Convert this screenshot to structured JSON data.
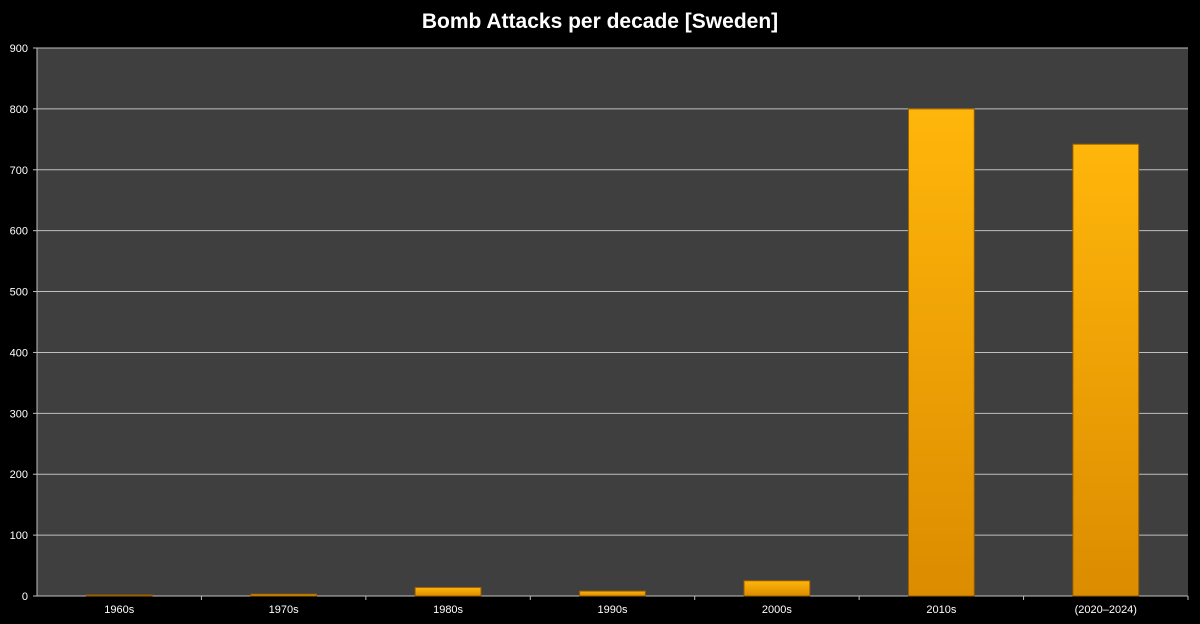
{
  "chart_data": {
    "type": "bar",
    "title": "Bomb Attacks per decade [Sweden]",
    "xlabel": "",
    "ylabel": "",
    "categories": [
      "1960s",
      "1970s",
      "1980s",
      "1990s",
      "2000s",
      "2010s",
      "(2020–2024)"
    ],
    "values": [
      1,
      3,
      14,
      8,
      25,
      800,
      742
    ],
    "ylim": [
      0,
      900
    ],
    "yticks": [
      0,
      100,
      200,
      300,
      400,
      500,
      600,
      700,
      800,
      900
    ],
    "grid": true,
    "legend": "none",
    "colors": {
      "background": "#000000",
      "plot_area": "#3f3f3f",
      "gridline": "#bfbfbf",
      "bar_top": "#ffb60a",
      "bar_bottom": "#db8c00",
      "bar_edge": "#9a5f00",
      "text": "#ffffff"
    }
  }
}
